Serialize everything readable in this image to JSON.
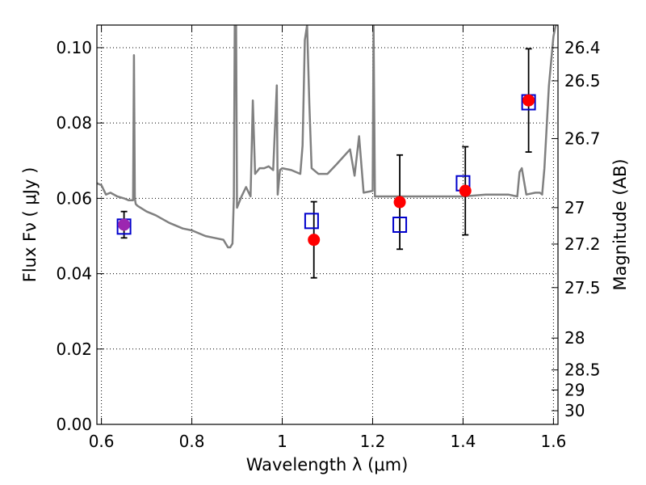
{
  "chart_data": {
    "type": "scatter",
    "title": "",
    "xlabel": "Wavelength  λ (μm)",
    "ylabel": "Flux  Fν  ( μJy )",
    "y2label": "Magnitude (AB)",
    "xlim": [
      0.59,
      1.61
    ],
    "ylim": [
      0.0,
      0.106
    ],
    "grid": true,
    "x_ticks": [
      0.6,
      0.8,
      1.0,
      1.2,
      1.4,
      1.6
    ],
    "x_tick_labels": [
      "0.6",
      "0.8",
      "1",
      "1.2",
      "1.4",
      "1.6"
    ],
    "y_ticks": [
      0.0,
      0.02,
      0.04,
      0.06,
      0.08,
      0.1
    ],
    "y_tick_labels": [
      "0.00",
      "0.02",
      "0.04",
      "0.06",
      "0.08",
      "0.10"
    ],
    "y2_ticks": [
      26.4,
      26.5,
      26.7,
      27,
      27.2,
      27.5,
      28,
      28.5,
      29,
      30
    ],
    "y2_tick_labels": [
      "26.4",
      "26.5",
      "26.7",
      "27",
      "27.2",
      "27.5",
      "28",
      "28.5",
      "29",
      "30"
    ],
    "series": [
      {
        "kind": "line",
        "color": "#808080",
        "x": [
          0.59,
          0.6,
          0.61,
          0.62,
          0.635,
          0.65,
          0.66,
          0.67,
          0.672,
          0.674,
          0.676,
          0.68,
          0.7,
          0.72,
          0.75,
          0.78,
          0.8,
          0.83,
          0.85,
          0.87,
          0.88,
          0.885,
          0.89,
          0.893,
          0.895,
          0.898,
          0.9,
          0.91,
          0.92,
          0.93,
          0.935,
          0.94,
          0.95,
          0.96,
          0.97,
          0.98,
          0.988,
          0.99,
          0.995,
          1.0,
          1.02,
          1.04,
          1.045,
          1.05,
          1.055,
          1.06,
          1.065,
          1.08,
          1.1,
          1.12,
          1.15,
          1.16,
          1.17,
          1.18,
          1.2,
          1.202,
          1.205,
          1.21,
          1.22,
          1.25,
          1.3,
          1.35,
          1.4,
          1.45,
          1.5,
          1.52,
          1.525,
          1.53,
          1.54,
          1.56,
          1.57,
          1.575,
          1.58,
          1.59,
          1.6,
          1.605,
          1.61
        ],
        "y": [
          0.064,
          0.0635,
          0.061,
          0.0615,
          0.0605,
          0.06,
          0.0595,
          0.0595,
          0.098,
          0.06,
          0.0585,
          0.058,
          0.0565,
          0.0555,
          0.0535,
          0.052,
          0.0515,
          0.05,
          0.0495,
          0.049,
          0.047,
          0.047,
          0.048,
          0.06,
          0.106,
          0.106,
          0.0575,
          0.0605,
          0.063,
          0.0605,
          0.086,
          0.0665,
          0.068,
          0.068,
          0.0685,
          0.0675,
          0.09,
          0.061,
          0.0675,
          0.068,
          0.0675,
          0.0665,
          0.074,
          0.102,
          0.106,
          0.085,
          0.068,
          0.0665,
          0.0665,
          0.069,
          0.073,
          0.066,
          0.0765,
          0.0615,
          0.062,
          0.106,
          0.0605,
          0.0605,
          0.0605,
          0.0605,
          0.0605,
          0.0605,
          0.0605,
          0.061,
          0.061,
          0.0605,
          0.067,
          0.068,
          0.061,
          0.0615,
          0.0615,
          0.061,
          0.068,
          0.09,
          0.103,
          0.106,
          0.106
        ]
      },
      {
        "kind": "markers",
        "marker": "circle",
        "color": "#ff0000",
        "x": [
          0.65,
          1.07,
          1.26,
          1.405,
          1.545
        ],
        "y": [
          0.053,
          0.049,
          0.059,
          0.062,
          0.086
        ],
        "yerr": [
          0.0035,
          0.0101,
          0.0125,
          0.0117,
          0.0137
        ]
      },
      {
        "kind": "markers",
        "marker": "open-square",
        "color": "#0000cc",
        "x": [
          0.65,
          1.065,
          1.26,
          1.4,
          1.545
        ],
        "y": [
          0.0525,
          0.054,
          0.053,
          0.064,
          0.0855
        ]
      }
    ],
    "overlap_color": "#9c27b0"
  }
}
